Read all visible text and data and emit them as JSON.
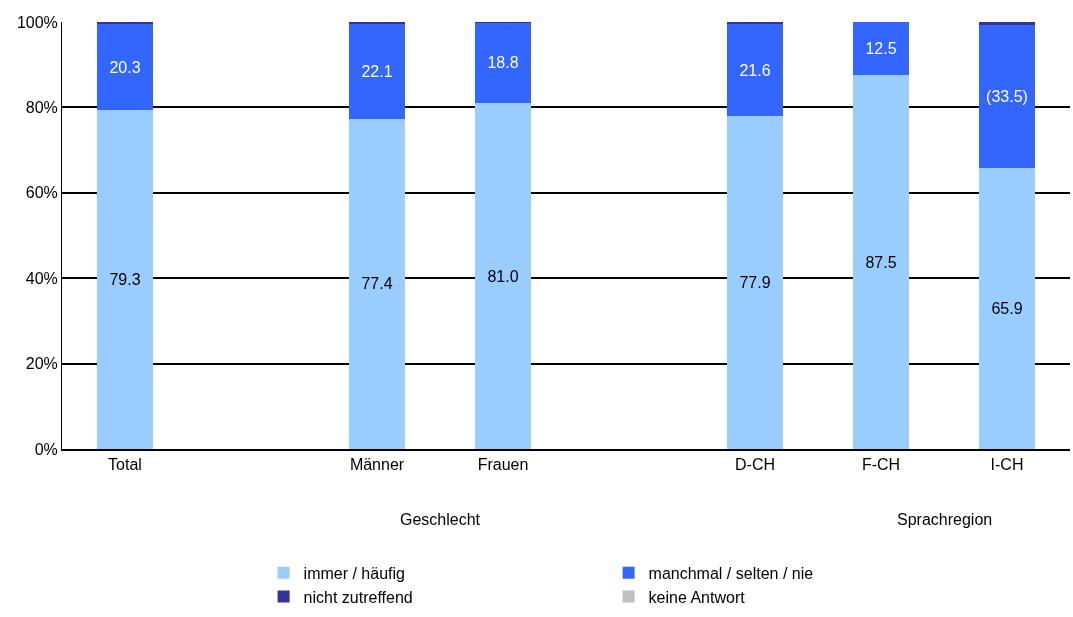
{
  "chart_data": {
    "type": "bar",
    "stacked": true,
    "categories": [
      "Total",
      null,
      "Männer",
      "Frauen",
      null,
      "D-CH",
      "F-CH",
      "I-CH"
    ],
    "series": [
      {
        "name": "immer / häufig",
        "color": "#99ccff",
        "values": [
          79.3,
          null,
          77.4,
          81.0,
          null,
          77.9,
          87.5,
          65.9
        ],
        "value_labels": [
          "79.3",
          null,
          "77.4",
          "81.0",
          null,
          "77.9",
          "87.5",
          "65.9"
        ]
      },
      {
        "name": "manchmal / selten / nie",
        "color": "#3366ff",
        "values": [
          20.3,
          null,
          22.1,
          18.8,
          null,
          21.6,
          12.5,
          33.5
        ],
        "value_labels": [
          "20.3",
          null,
          "22.1",
          "18.8",
          null,
          "21.6",
          "12.5",
          "(33.5)"
        ]
      },
      {
        "name": "nicht zutreffend",
        "color": "#333399",
        "values": [
          0.4,
          null,
          0.5,
          0.2,
          null,
          0.5,
          0,
          0.6
        ]
      },
      {
        "name": "keine Antwort",
        "color": "#c0c0c0",
        "values": [
          0,
          null,
          0,
          0,
          null,
          0,
          0,
          0
        ]
      }
    ],
    "annotations": [
      "Geschlecht",
      "Sprachregion"
    ],
    "ylim": [
      0,
      100
    ],
    "yticks": [
      {
        "value": 0,
        "label": "0%"
      },
      {
        "value": 20,
        "label": "20%"
      },
      {
        "value": 40,
        "label": "40%"
      },
      {
        "value": 60,
        "label": "60%"
      },
      {
        "value": 80,
        "label": "80%"
      },
      {
        "value": 100,
        "label": "100%"
      }
    ],
    "grid": "y",
    "legend": "bottom"
  }
}
